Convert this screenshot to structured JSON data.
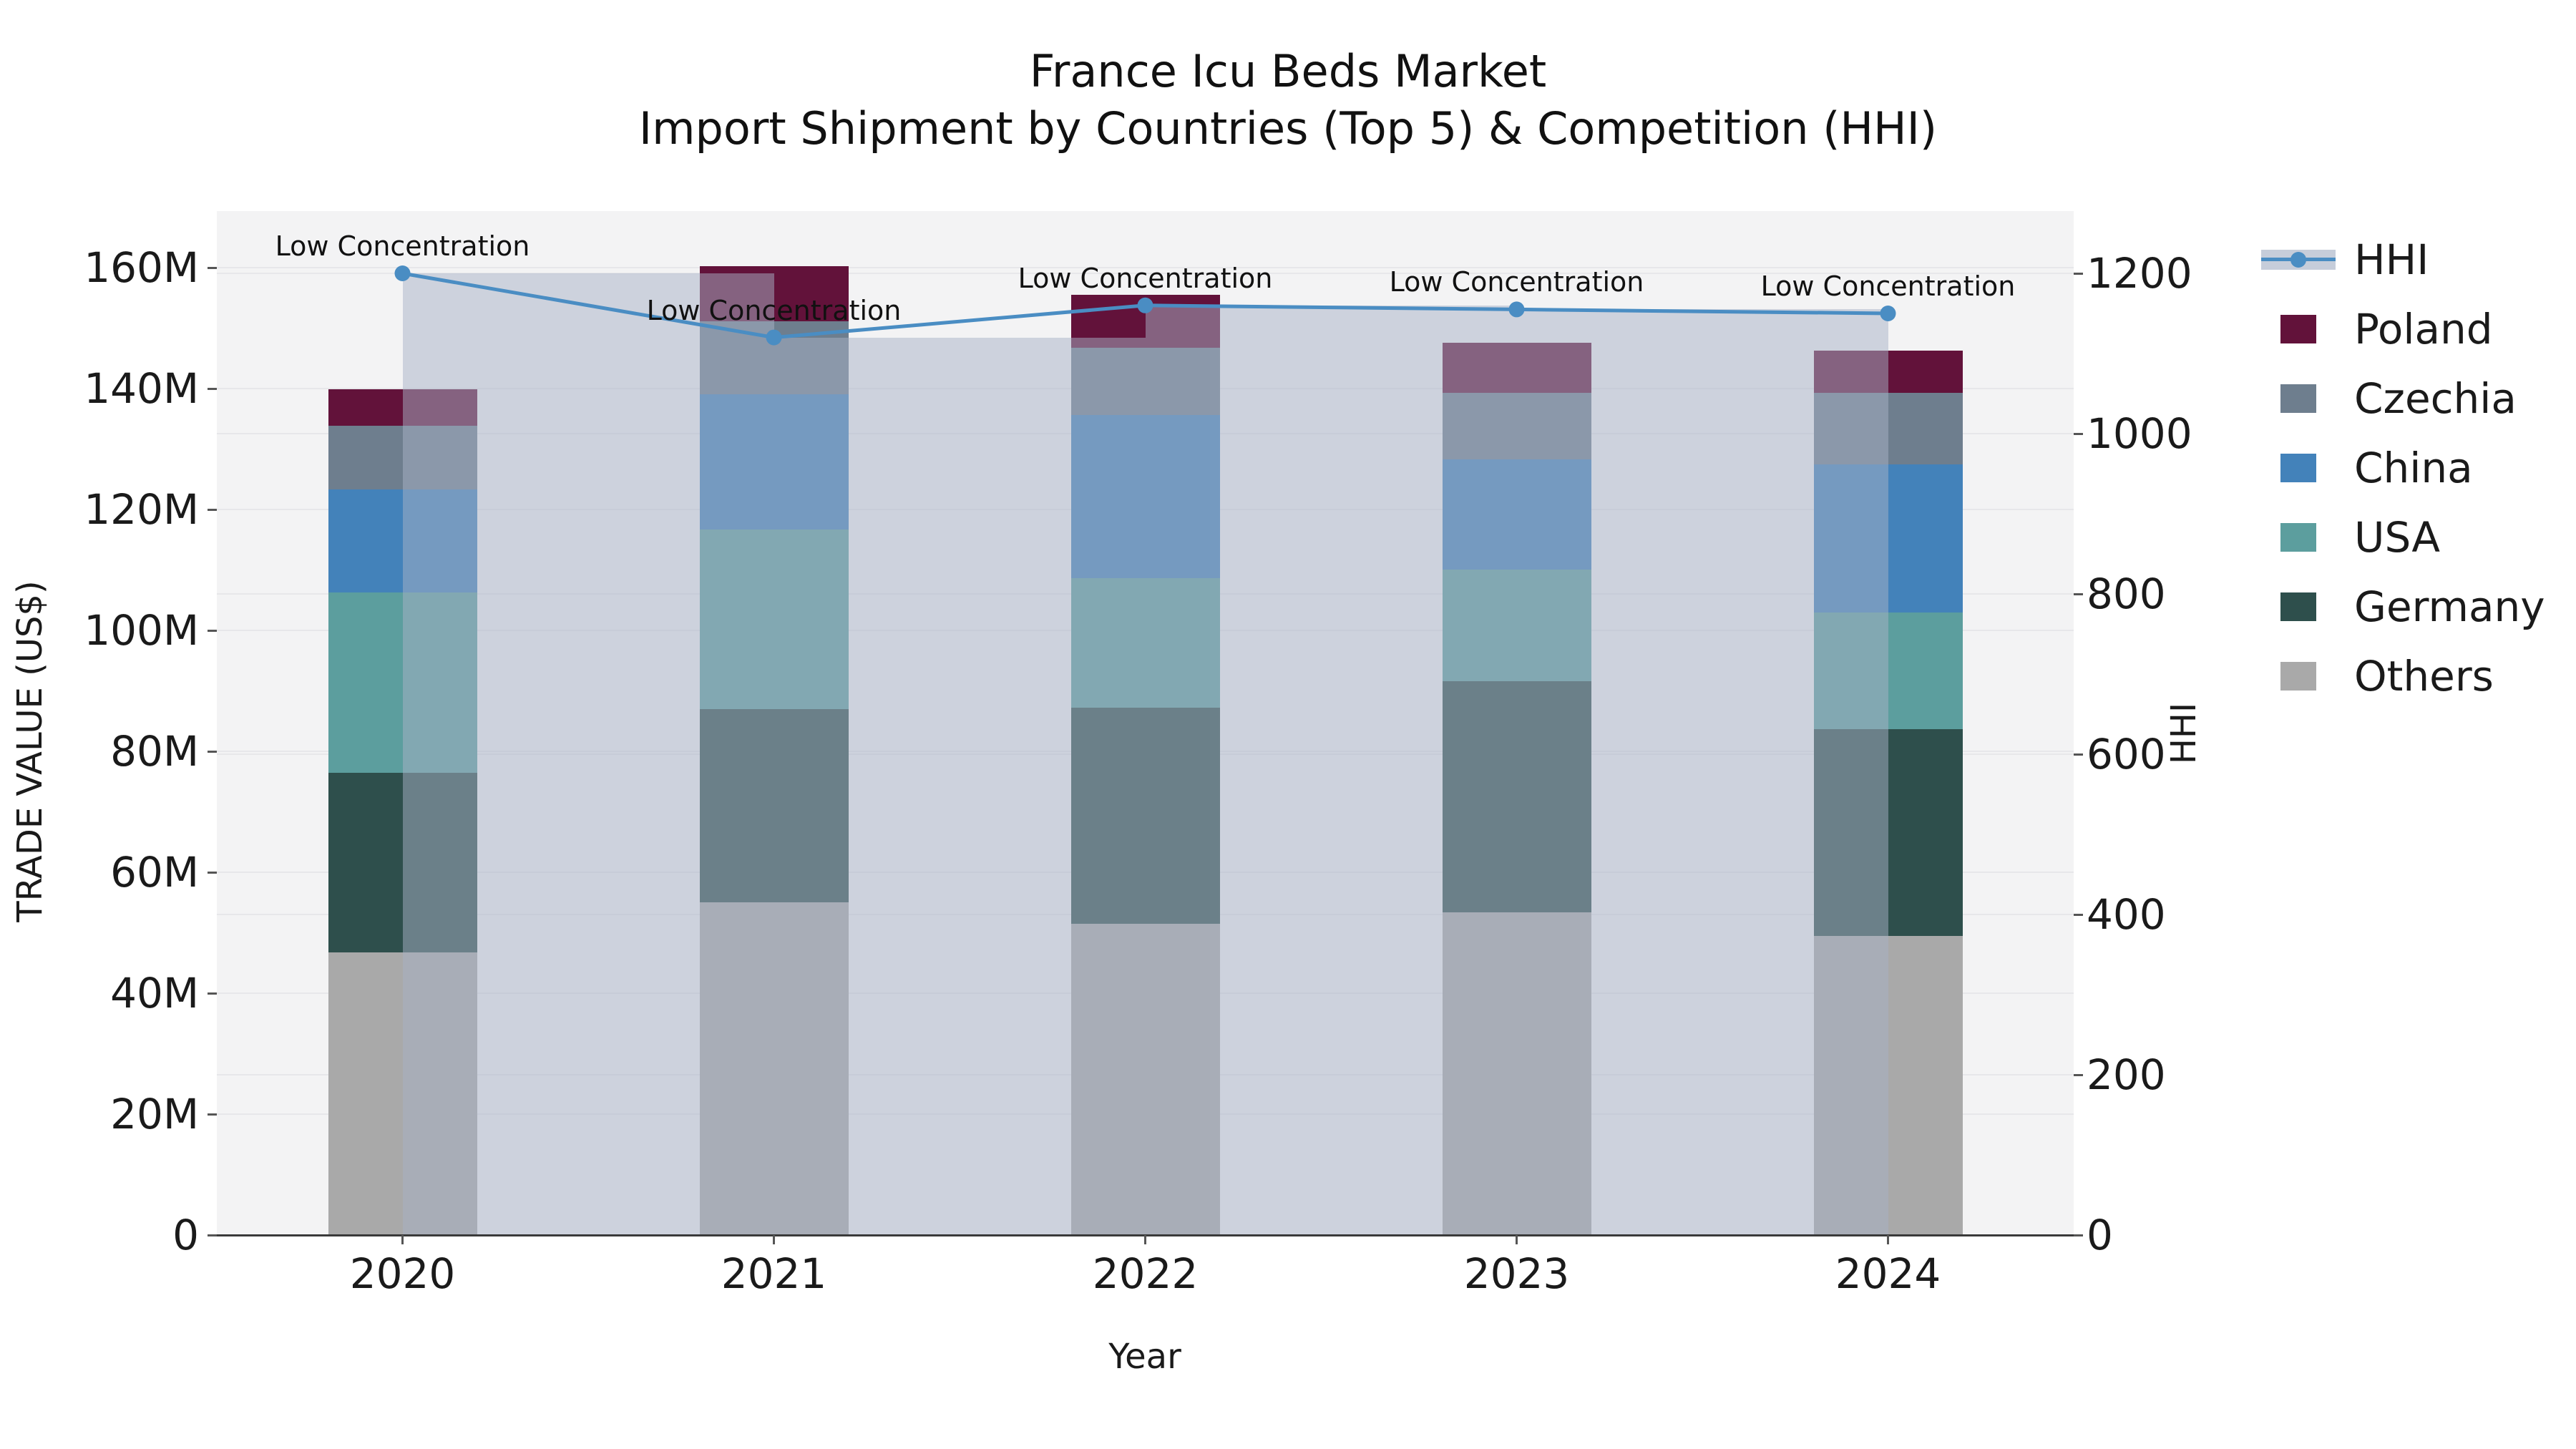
{
  "title": {
    "line1": "France Icu Beds Market",
    "line2": "Import Shipment by Countries (Top 5) & Competition (HHI)"
  },
  "axes": {
    "x": {
      "label": "Year",
      "tick_labels": [
        "2020",
        "2021",
        "2022",
        "2023",
        "2024"
      ]
    },
    "y_left": {
      "label": "TRADE VALUE (US$)",
      "ticks": [
        {
          "label": "0",
          "value": 0
        },
        {
          "label": "20M",
          "value": 20
        },
        {
          "label": "40M",
          "value": 40
        },
        {
          "label": "60M",
          "value": 60
        },
        {
          "label": "80M",
          "value": 80
        },
        {
          "label": "100M",
          "value": 100
        },
        {
          "label": "120M",
          "value": 120
        },
        {
          "label": "140M",
          "value": 140
        },
        {
          "label": "160M",
          "value": 160
        }
      ]
    },
    "y_right": {
      "label": "HHI",
      "ticks": [
        {
          "label": "0",
          "value": 0
        },
        {
          "label": "200",
          "value": 200
        },
        {
          "label": "400",
          "value": 400
        },
        {
          "label": "600",
          "value": 600
        },
        {
          "label": "800",
          "value": 800
        },
        {
          "label": "1000",
          "value": 1000
        },
        {
          "label": "1200",
          "value": 1200
        }
      ]
    }
  },
  "legend": {
    "items": [
      {
        "label": "HHI",
        "type": "line",
        "color": "#4a8dc3"
      },
      {
        "label": "Poland",
        "type": "patch",
        "color": "#62123a"
      },
      {
        "label": "Czechia",
        "type": "patch",
        "color": "#6e7e8e"
      },
      {
        "label": "China",
        "type": "patch",
        "color": "#4382ba"
      },
      {
        "label": "USA",
        "type": "patch",
        "color": "#5c9e9e"
      },
      {
        "label": "Germany",
        "type": "patch",
        "color": "#2e4f4c"
      },
      {
        "label": "Others",
        "type": "patch",
        "color": "#a9a9a9"
      }
    ]
  },
  "chart_data": {
    "type": "combo_stacked_bar_and_line",
    "categories": [
      "2020",
      "2021",
      "2022",
      "2023",
      "2024"
    ],
    "bar_value_unit": "Million US$",
    "stack_order_bottom_to_top": [
      "Others",
      "Germany",
      "USA",
      "China",
      "Czechia",
      "Poland"
    ],
    "series": [
      {
        "name": "Others",
        "color": "#a9a9a9",
        "values": [
          46.7,
          55.0,
          51.5,
          53.4,
          49.5
        ]
      },
      {
        "name": "Germany",
        "color": "#2e4f4c",
        "values": [
          29.7,
          32.0,
          35.7,
          38.2,
          34.2
        ]
      },
      {
        "name": "USA",
        "color": "#5c9e9e",
        "values": [
          29.9,
          29.7,
          21.4,
          18.5,
          19.3
        ]
      },
      {
        "name": "China",
        "color": "#4382ba",
        "values": [
          17.0,
          22.4,
          27.0,
          18.2,
          24.5
        ]
      },
      {
        "name": "Czechia",
        "color": "#6e7e8e",
        "values": [
          10.5,
          12.0,
          11.1,
          11.0,
          11.8
        ]
      },
      {
        "name": "Poland",
        "color": "#62123a",
        "values": [
          6.1,
          9.1,
          8.8,
          8.3,
          7.0
        ]
      }
    ],
    "bar_totals": [
      139.9,
      160.2,
      155.5,
      147.6,
      146.3
    ],
    "line_series": {
      "name": "HHI",
      "axis": "right",
      "color": "#4a8dc3",
      "band_color": "rgba(168,178,198,0.50)",
      "values": [
        1200,
        1120,
        1160,
        1155,
        1150
      ]
    },
    "point_annotations": [
      "Low Concentration",
      "Low Concentration",
      "Low Concentration",
      "Low Concentration",
      "Low Concentration"
    ],
    "y_left_range_millions": [
      0,
      169
    ],
    "y_right_range": [
      0,
      1278
    ],
    "grid": true,
    "legend_position": "upper right outside"
  },
  "colors": {
    "figure_bg": "#ffffff",
    "plot_bg": "#f3f3f4",
    "grid": "#e7e7ea",
    "spine": "#3a3a3a",
    "text": "#1a1a1a"
  }
}
